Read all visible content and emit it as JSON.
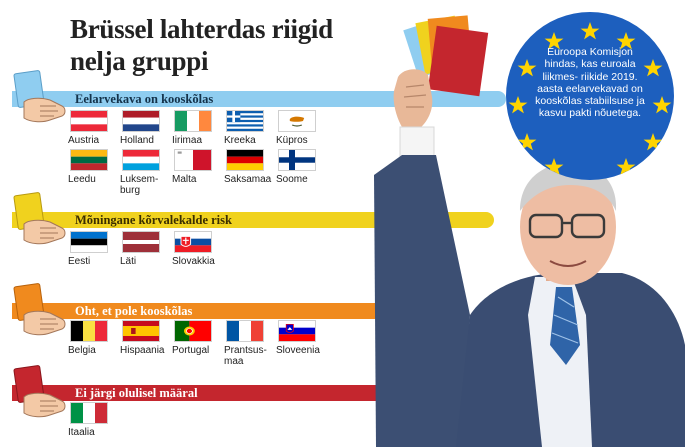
{
  "title": {
    "line1": "Brüssel lahterdas riigid",
    "line2": "nelja gruppi"
  },
  "info_text": "Euroopa Komisjon hindas, kas euroala liikmes- riikide 2019. aasta eelarvekavad on kooskõlas stabiilsuse ja kasvu pakti nõuetega.",
  "colors": {
    "blue": "#8fcdf0",
    "yellow": "#f0d21e",
    "orange": "#f08a1e",
    "red": "#c4262e",
    "eu_blue": "#1d5fbe",
    "eu_star": "#ffd400"
  },
  "groups": [
    {
      "label": "Eelarvekava on kooskõlas",
      "countries": [
        {
          "name": "Austria",
          "flag": "austria"
        },
        {
          "name": "Holland",
          "flag": "netherlands"
        },
        {
          "name": "Iirimaa",
          "flag": "ireland"
        },
        {
          "name": "Kreeka",
          "flag": "greece"
        },
        {
          "name": "Küpros",
          "flag": "cyprus"
        },
        {
          "name": "Leedu",
          "flag": "lithuania"
        },
        {
          "name": "Luksem-\nburg",
          "flag": "luxembourg"
        },
        {
          "name": "Malta",
          "flag": "malta"
        },
        {
          "name": "Saksamaa",
          "flag": "germany"
        },
        {
          "name": "Soome",
          "flag": "finland"
        }
      ]
    },
    {
      "label": "Mõningane kõrvalekalde risk",
      "countries": [
        {
          "name": "Eesti",
          "flag": "estonia"
        },
        {
          "name": "Läti",
          "flag": "latvia"
        },
        {
          "name": "Slovakkia",
          "flag": "slovakia"
        }
      ]
    },
    {
      "label": "Oht, et pole kooskõlas",
      "countries": [
        {
          "name": "Belgia",
          "flag": "belgium"
        },
        {
          "name": "Hispaania",
          "flag": "spain"
        },
        {
          "name": "Portugal",
          "flag": "portugal"
        },
        {
          "name": "Prantsus-\nmaa",
          "flag": "france"
        },
        {
          "name": "Sloveenia",
          "flag": "slovenia"
        }
      ]
    },
    {
      "label": "Ei järgi olulisel määral",
      "countries": [
        {
          "name": "Itaalia",
          "flag": "italy"
        }
      ]
    }
  ]
}
